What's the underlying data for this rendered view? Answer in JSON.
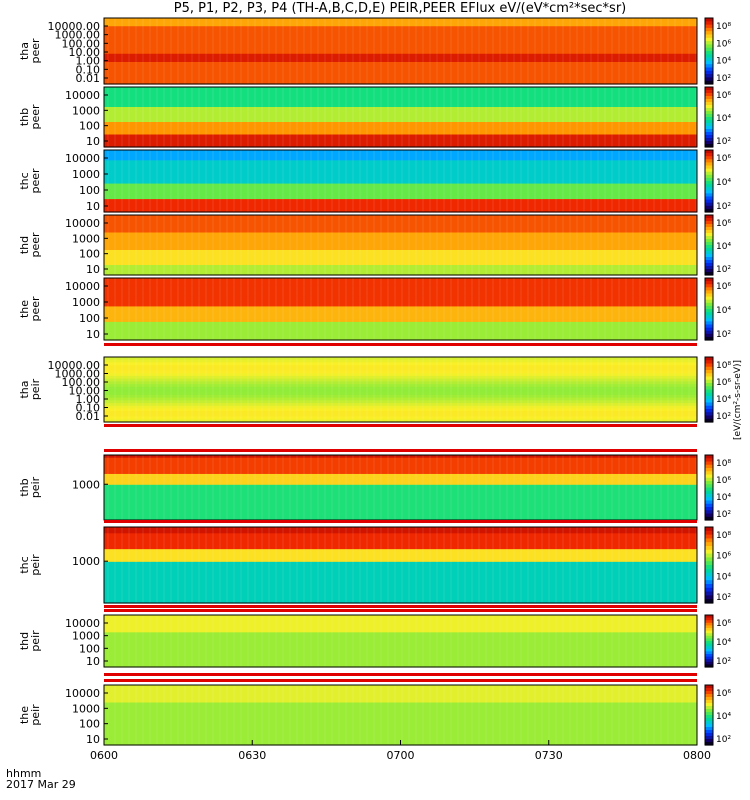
{
  "title": "P5, P1, P2, P3, P4 (TH-A,B,C,D,E) PEIR,PEER EFlux eV/(eV*cm²*sec*sr)",
  "unit_label": "[eV/(cm²-s-sr-eV)]",
  "time_axis": {
    "label_line1": "hhmm",
    "label_line2": "2017 Mar 29",
    "ticks": [
      "0600",
      "0630",
      "0700",
      "0730",
      "0800"
    ]
  },
  "colorbar_ticks_main": [
    "10⁸",
    "10⁶",
    "10⁴",
    "10²"
  ],
  "colorbar_ticks_small": [
    "10⁶",
    "10⁴",
    "10²"
  ],
  "chart_data": {
    "type": "heatmap",
    "x_range": [
      "0600",
      "0800"
    ],
    "y_scale": "log",
    "panels": [
      {
        "name": "tha peer",
        "line1": "tha",
        "line2": "peer",
        "yticks": [
          "10000.00",
          "1000.00",
          "100.00",
          "10.00",
          "1.00",
          "0.10",
          "0.01"
        ],
        "ylim": [
          0.01,
          30000
        ],
        "profile": "tha_peer"
      },
      {
        "name": "thb peer",
        "line1": "thb",
        "line2": "peer",
        "yticks": [
          "10000",
          "1000",
          "100",
          "10"
        ],
        "ylim": [
          5,
          30000
        ],
        "profile": "thb_peer"
      },
      {
        "name": "thc peer",
        "line1": "thc",
        "line2": "peer",
        "yticks": [
          "10000",
          "1000",
          "100",
          "10"
        ],
        "ylim": [
          5,
          30000
        ],
        "profile": "thc_peer"
      },
      {
        "name": "thd peer",
        "line1": "thd",
        "line2": "peer",
        "yticks": [
          "10000",
          "1000",
          "100",
          "10"
        ],
        "ylim": [
          5,
          30000
        ],
        "profile": "thd_peer"
      },
      {
        "name": "the peer",
        "line1": "the",
        "line2": "peer",
        "yticks": [
          "10000",
          "1000",
          "100",
          "10"
        ],
        "ylim": [
          5,
          30000
        ],
        "profile": "the_peer"
      },
      {
        "name": "tha peir",
        "line1": "tha",
        "line2": "peir",
        "yticks": [
          "10000.00",
          "1000.00",
          "100.00",
          "10.00",
          "1.00",
          "0.10",
          "0.01"
        ],
        "ylim": [
          0.01,
          30000
        ],
        "profile": "tha_peir"
      },
      {
        "name": "thb peir",
        "line1": "thb",
        "line2": "peir",
        "yticks": [
          "1000"
        ],
        "ylim": [
          5,
          30000
        ],
        "profile": "thb_peir"
      },
      {
        "name": "thc peir",
        "line1": "thc",
        "line2": "peir",
        "yticks": [
          "1000"
        ],
        "ylim": [
          5,
          30000
        ],
        "profile": "thc_peir"
      },
      {
        "name": "thd peir",
        "line1": "thd",
        "line2": "peir",
        "yticks": [
          "10000",
          "1000",
          "100",
          "10"
        ],
        "ylim": [
          5,
          30000
        ],
        "profile": "thd_peir"
      },
      {
        "name": "the peir",
        "line1": "the",
        "line2": "peir",
        "yticks": [
          "10000",
          "1000",
          "100",
          "10"
        ],
        "ylim": [
          5,
          30000
        ],
        "profile": "the_peir"
      }
    ]
  }
}
